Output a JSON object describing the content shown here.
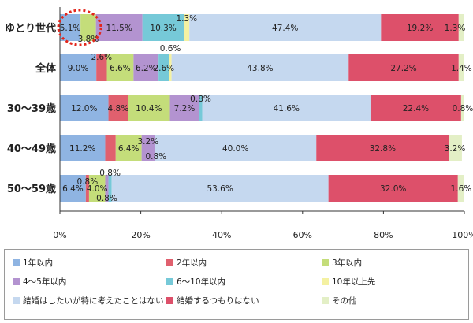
{
  "chart_data": {
    "type": "bar",
    "orientation": "horizontal",
    "stacked": true,
    "title": "",
    "xlabel": "",
    "ylabel": "",
    "xlim": [
      0,
      100
    ],
    "x_ticks": [
      "0%",
      "20%",
      "40%",
      "60%",
      "80%",
      "100%"
    ],
    "categories": [
      "ゆとり世代",
      "全体",
      "30～39歳",
      "40～49歳",
      "50～59歳"
    ],
    "series": [
      {
        "name": "1年以内",
        "color": "#8fb4e2",
        "values": [
          5.1,
          9.0,
          12.0,
          11.2,
          6.4
        ]
      },
      {
        "name": "2年以内",
        "color": "#e0606e",
        "values": [
          0.0,
          2.6,
          4.8,
          2.6,
          0.8
        ]
      },
      {
        "name": "3年以内",
        "color": "#c4dd7a",
        "values": [
          3.8,
          6.6,
          10.4,
          6.4,
          4.0
        ]
      },
      {
        "name": "4～5年以内",
        "color": "#b393d0",
        "values": [
          11.5,
          6.2,
          7.2,
          3.2,
          0.8
        ]
      },
      {
        "name": "6～10年以内",
        "color": "#76c9d8",
        "values": [
          10.3,
          2.6,
          0.8,
          0.0,
          0.8
        ]
      },
      {
        "name": "10年以上先",
        "color": "#f4f1a2",
        "values": [
          1.3,
          0.6,
          0.0,
          0.0,
          0.0
        ]
      },
      {
        "name": "結婚はしたいが特に考えたことはない",
        "color": "#c5d8ef",
        "values": [
          47.4,
          43.8,
          41.6,
          40.0,
          53.6
        ]
      },
      {
        "name": "結婚するつもりはない",
        "color": "#dd506a",
        "values": [
          19.2,
          27.2,
          22.4,
          32.8,
          32.0
        ]
      },
      {
        "name": "その他",
        "color": "#e3efc6",
        "values": [
          1.3,
          1.4,
          0.8,
          3.2,
          1.6
        ]
      }
    ],
    "segment_labels": [
      [
        "5.1%",
        "",
        "3.8%",
        "11.5%",
        "10.3%",
        "1.3%",
        "47.4%",
        "19.2%",
        "1.3%"
      ],
      [
        "9.0%",
        "2.6%",
        "6.6%",
        "6.2%",
        "2.6%",
        "0.6%",
        "43.8%",
        "27.2%",
        "1.4%"
      ],
      [
        "12.0%",
        "4.8%",
        "10.4%",
        "7.2%",
        "0.8%",
        "",
        "41.6%",
        "22.4%",
        "0.8%"
      ],
      [
        "11.2%",
        "",
        "6.4%",
        "3.2%",
        "",
        "",
        "40.0%",
        "32.8%",
        "3.2%"
      ],
      [
        "6.4%",
        "0.8%",
        "4.0%",
        "0.8%",
        "0.8%",
        "",
        "53.6%",
        "32.0%",
        "1.6%"
      ]
    ],
    "extra_labels": [
      {
        "row": 3,
        "text": "0.8%"
      }
    ],
    "highlight": {
      "row": 0,
      "note": "dashed red circle"
    }
  }
}
